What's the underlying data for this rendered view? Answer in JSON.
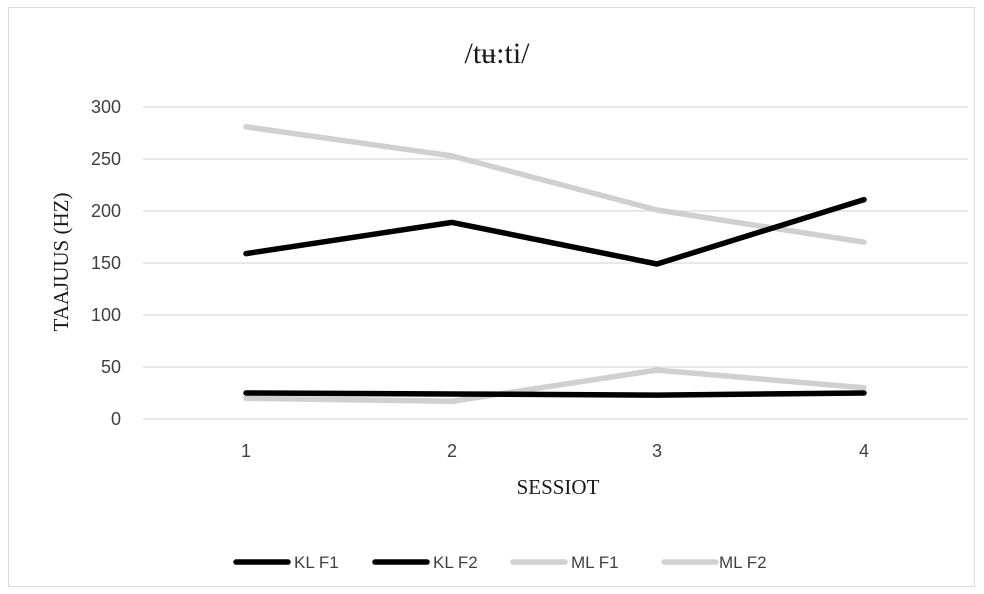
{
  "chart_data": {
    "type": "line",
    "title": "/tʉ:ti/",
    "xlabel": "SESSIOT",
    "ylabel": "TAAJUUS (HZ)",
    "categories": [
      "1",
      "2",
      "3",
      "4"
    ],
    "ylim": [
      0,
      300
    ],
    "yticks": [
      0,
      50,
      100,
      150,
      200,
      250,
      300
    ],
    "grid": true,
    "legend_position": "bottom",
    "series": [
      {
        "name": "KL F1",
        "values": [
          25,
          24,
          23,
          25
        ],
        "color": "#000000"
      },
      {
        "name": "KL F2",
        "values": [
          159,
          189,
          149,
          211
        ],
        "color": "#000000"
      },
      {
        "name": "ML F1",
        "values": [
          20,
          17,
          47,
          30
        ],
        "color": "#d0d0d0"
      },
      {
        "name": "ML F2",
        "values": [
          281,
          253,
          201,
          170
        ],
        "color": "#d0d0d0"
      }
    ]
  }
}
